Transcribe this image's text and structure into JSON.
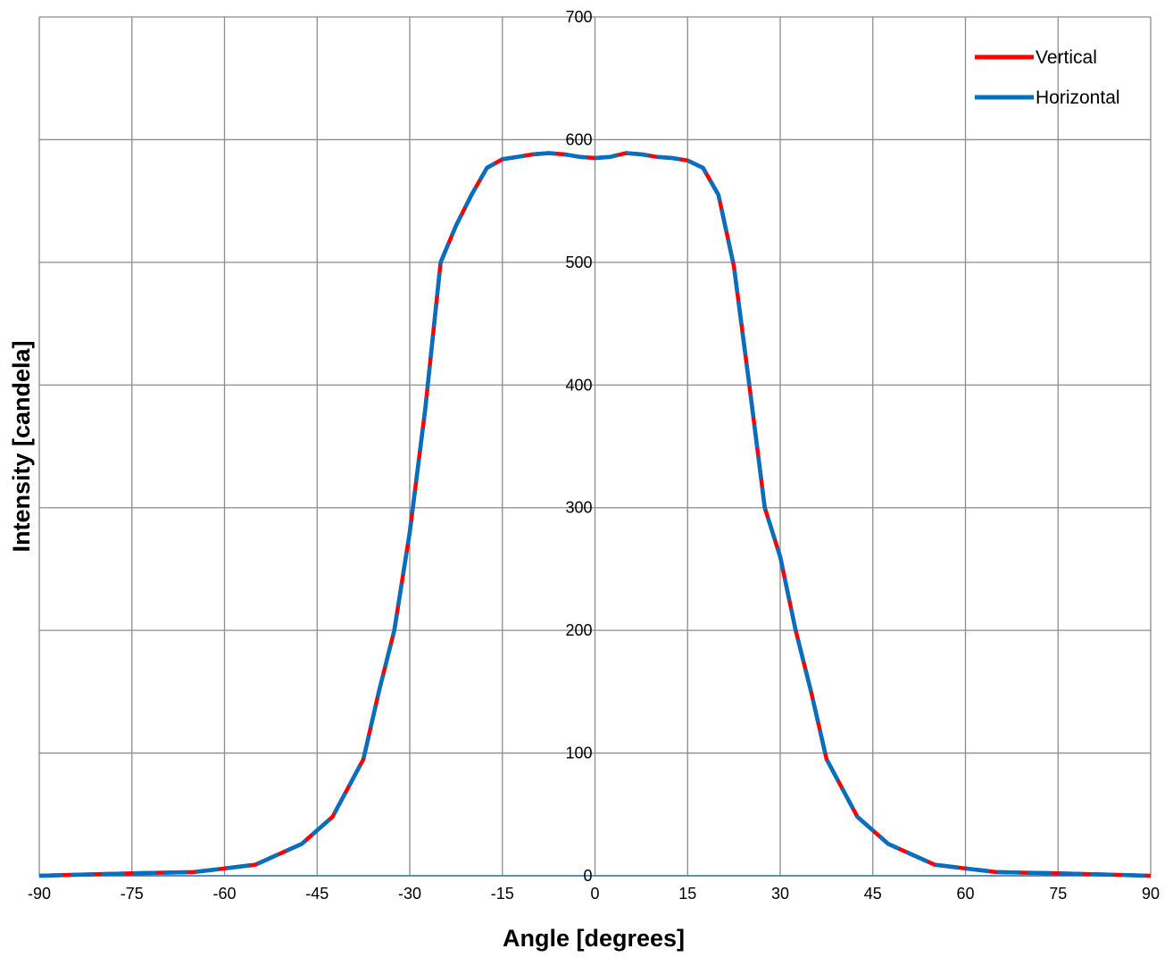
{
  "chart_data": {
    "type": "line",
    "title": "",
    "xlabel": "Angle [degrees]",
    "ylabel": "Intensity  [candela]",
    "xlim": [
      -90,
      90
    ],
    "ylim": [
      0,
      700
    ],
    "xticks": [
      -90,
      -75,
      -60,
      -45,
      -30,
      -15,
      0,
      15,
      30,
      45,
      60,
      75,
      90
    ],
    "yticks": [
      0,
      100,
      200,
      300,
      400,
      500,
      600,
      700
    ],
    "grid": true,
    "legend": "top-right",
    "series": [
      {
        "name": "Vertical",
        "color": "#ff0000",
        "x": [
          -90,
          -82.5,
          -75,
          -65,
          -60,
          -55,
          -47.5,
          -42.5,
          -37.5,
          -35,
          -32.5,
          -30,
          -27.5,
          -25,
          -22.5,
          -20,
          -17.5,
          -15,
          -12.5,
          -10,
          -7.5,
          -5,
          -2.5,
          0,
          2.5,
          5,
          7.5,
          10,
          12.5,
          15,
          17.5,
          20,
          22.5,
          25,
          27.5,
          30,
          32.5,
          35,
          37.5,
          42.5,
          47.5,
          55,
          60,
          65,
          75,
          82.5,
          90
        ],
        "y": [
          0,
          1,
          2,
          3,
          6,
          9,
          26,
          48,
          95,
          150,
          200,
          280,
          380,
          500,
          530,
          555,
          577,
          584,
          586,
          588,
          589,
          588,
          586,
          585,
          586,
          589,
          588,
          586,
          585,
          583,
          577,
          555,
          497,
          400,
          300,
          260,
          200,
          150,
          95,
          48,
          26,
          9,
          6,
          3,
          2,
          1,
          0
        ]
      },
      {
        "name": "Horizontal",
        "color": "#0070c0",
        "x": [
          -90,
          -82.5,
          -75,
          -65,
          -60,
          -55,
          -47.5,
          -42.5,
          -37.5,
          -35,
          -32.5,
          -30,
          -27.5,
          -25,
          -22.5,
          -20,
          -17.5,
          -15,
          -12.5,
          -10,
          -7.5,
          -5,
          -2.5,
          0,
          2.5,
          5,
          7.5,
          10,
          12.5,
          15,
          17.5,
          20,
          22.5,
          25,
          27.5,
          30,
          32.5,
          35,
          37.5,
          42.5,
          47.5,
          55,
          60,
          65,
          75,
          82.5,
          90
        ],
        "y": [
          0,
          1,
          2,
          3,
          6,
          9,
          26,
          48,
          95,
          150,
          200,
          280,
          380,
          500,
          530,
          555,
          577,
          584,
          586,
          588,
          589,
          588,
          586,
          585,
          586,
          589,
          588,
          586,
          585,
          583,
          577,
          555,
          497,
          400,
          300,
          260,
          200,
          150,
          95,
          48,
          26,
          9,
          6,
          3,
          2,
          1,
          0
        ]
      }
    ]
  }
}
